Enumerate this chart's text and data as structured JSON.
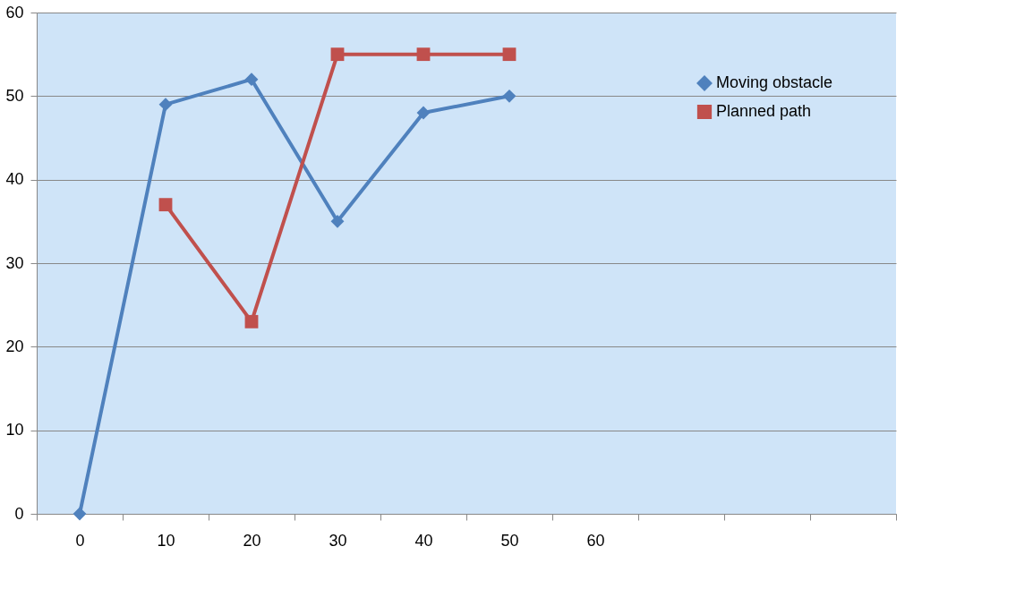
{
  "chart_data": {
    "type": "line",
    "categories": [
      "0",
      "10",
      "20",
      "30",
      "40",
      "50",
      "60",
      null,
      null,
      null
    ],
    "series": [
      {
        "name": "Moving obstacle",
        "color": "#4f81bd",
        "marker": "diamond",
        "values": [
          0,
          49,
          52,
          35,
          48,
          50,
          null,
          null,
          null,
          null
        ]
      },
      {
        "name": "Planned path",
        "color": "#c0504d",
        "marker": "square",
        "values": [
          null,
          37,
          23,
          55,
          55,
          55,
          null,
          null,
          null,
          null
        ]
      }
    ],
    "ylim": [
      0,
      60
    ],
    "yticks": [
      0,
      10,
      20,
      30,
      40,
      50,
      60
    ],
    "grid": "y",
    "legend": "top right",
    "line_style": "solid"
  }
}
